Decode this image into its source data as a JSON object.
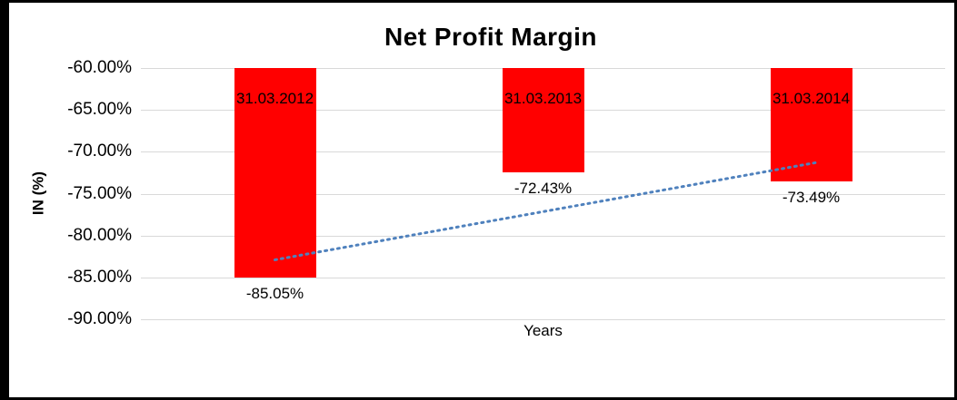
{
  "chart_data": {
    "type": "bar",
    "title": "Net Profit Margin",
    "xlabel": "Years",
    "ylabel": "IN (%)",
    "categories": [
      "31.03.2012",
      "31.03.2013",
      "31.03.2014"
    ],
    "values": [
      -85.05,
      -72.43,
      -73.49
    ],
    "data_labels": [
      "-85.05%",
      "-72.43%",
      "-73.49%"
    ],
    "ylim": [
      -90,
      -60
    ],
    "y_ticks": [
      "-60.00%",
      "-65.00%",
      "-70.00%",
      "-75.00%",
      "-80.00%",
      "-85.00%",
      "-90.00%"
    ],
    "y_tick_values": [
      -60,
      -65,
      -70,
      -75,
      -80,
      -85,
      -90
    ],
    "bar_base_value": -60,
    "bar_color": "#ff0000",
    "grid": true,
    "legend": "none",
    "trendline": {
      "style": "dotted",
      "color": "#4f81bd",
      "start_value": -82.9,
      "end_value": -71.3
    }
  }
}
